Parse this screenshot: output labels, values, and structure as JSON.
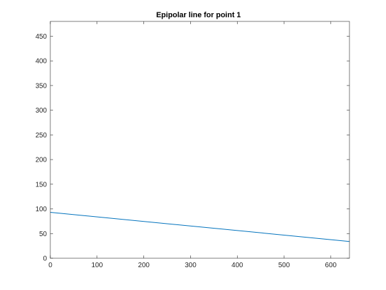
{
  "chart_data": {
    "type": "line",
    "title": "Epipolar line for point 1",
    "xlabel": "",
    "ylabel": "",
    "xlim": [
      0,
      640
    ],
    "ylim": [
      0,
      480
    ],
    "xticks": [
      0,
      100,
      200,
      300,
      400,
      500,
      600
    ],
    "yticks": [
      0,
      50,
      100,
      150,
      200,
      250,
      300,
      350,
      400,
      450
    ],
    "grid": false,
    "box": true,
    "series": [
      {
        "color": "#0072bd",
        "x": [
          0,
          640
        ],
        "y": [
          93,
          34
        ]
      }
    ]
  }
}
